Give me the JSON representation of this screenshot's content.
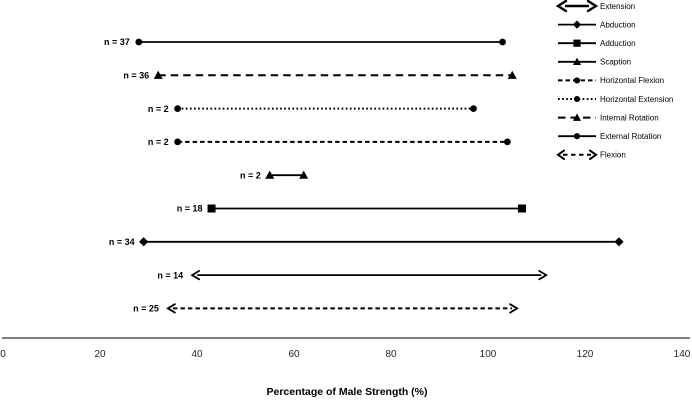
{
  "chart_data": {
    "type": "range-dot-plot",
    "title": "",
    "xlabel": "Percentage of Male Strength (%)",
    "xlim": [
      0,
      140
    ],
    "xticks": [
      0,
      20,
      40,
      60,
      80,
      100,
      120,
      140
    ],
    "grid": false,
    "legend_position": "top-right",
    "series": [
      {
        "name": "External Rotation",
        "n_label": "n = 37",
        "n": 37,
        "range": [
          28,
          103
        ],
        "line": "solid",
        "marker": "circle"
      },
      {
        "name": "Internal Rotation",
        "n_label": "n = 36",
        "n": 36,
        "range": [
          32,
          105
        ],
        "line": "long-dash",
        "marker": "triangle"
      },
      {
        "name": "Horizontal Extension",
        "n_label": "n = 2",
        "n": 2,
        "range": [
          36,
          97
        ],
        "line": "dotted",
        "marker": "circle"
      },
      {
        "name": "Horizontal Flexion",
        "n_label": "n = 2",
        "n": 2,
        "range": [
          36,
          104
        ],
        "line": "dashed",
        "marker": "circle"
      },
      {
        "name": "Scaption",
        "n_label": "n = 2",
        "n": 2,
        "range": [
          55,
          62
        ],
        "line": "solid",
        "marker": "triangle"
      },
      {
        "name": "Adduction",
        "n_label": "n = 18",
        "n": 18,
        "range": [
          43,
          107
        ],
        "line": "solid",
        "marker": "square"
      },
      {
        "name": "Abduction",
        "n_label": "n = 34",
        "n": 34,
        "range": [
          29,
          127
        ],
        "line": "solid",
        "marker": "diamond"
      },
      {
        "name": "Extension",
        "n_label": "n = 14",
        "n": 14,
        "range": [
          39,
          112
        ],
        "line": "solid",
        "marker": "arrow"
      },
      {
        "name": "Flexion",
        "n_label": "n = 25",
        "n": 25,
        "range": [
          34,
          106
        ],
        "line": "dashed",
        "marker": "arrow"
      }
    ],
    "legend": [
      {
        "label": "Extension",
        "line": "solid",
        "marker": "arrow"
      },
      {
        "label": "Abduction",
        "line": "solid",
        "marker": "diamond"
      },
      {
        "label": "Adduction",
        "line": "solid",
        "marker": "square"
      },
      {
        "label": "Scaption",
        "line": "solid",
        "marker": "triangle"
      },
      {
        "label": "Horizontal Flexion",
        "line": "dashed",
        "marker": "circle"
      },
      {
        "label": "Horizontal Extension",
        "line": "dotted",
        "marker": "circle"
      },
      {
        "label": "Internal Rotation",
        "line": "long-dash",
        "marker": "triangle"
      },
      {
        "label": "External Rotation",
        "line": "solid",
        "marker": "circle"
      },
      {
        "label": "Flexion",
        "line": "dashed",
        "marker": "arrow"
      }
    ],
    "colors": {
      "data": "#000000",
      "axis_line": "#7f7f7f",
      "tick_text": "#262626",
      "text": "#000000",
      "background": "#ffffff"
    }
  }
}
